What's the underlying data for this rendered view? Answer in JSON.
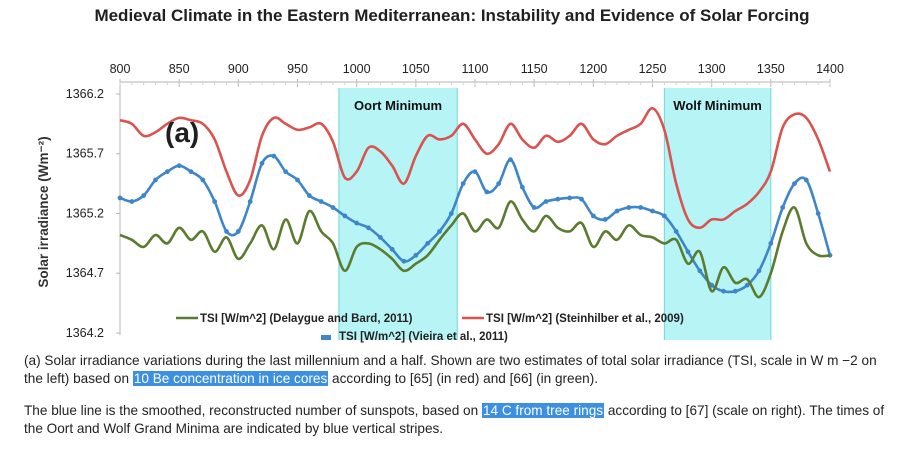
{
  "title": "Medieval Climate in the Eastern Mediterranean: Instability and Evidence of Solar Forcing",
  "panel_label": "(a)",
  "colors": {
    "red": "#d9534f",
    "green": "#5b7b2e",
    "blue": "#3e86c9",
    "stripe": "#9ff0f2"
  },
  "chart_data": {
    "type": "line",
    "xlabel": "",
    "ylabel": "Solar irradiance (Wm⁻²)",
    "xticks": [
      "800",
      "850",
      "900",
      "950",
      "1000",
      "1050",
      "1100",
      "1150",
      "1200",
      "1250",
      "1300",
      "1350",
      "1400"
    ],
    "yticks": [
      "1366.2",
      "1365.7",
      "1365.2",
      "1364.7",
      "1364.2"
    ],
    "xlim": [
      800,
      1400
    ],
    "ylim": [
      1364.2,
      1366.3
    ],
    "shaded_regions": [
      {
        "label": "Oort Minimum",
        "x0": 985,
        "x1": 1085
      },
      {
        "label": "Wolf Minimum",
        "x0": 1260,
        "x1": 1350
      }
    ],
    "legend": [
      {
        "label": "TSI [W/m^2] (Delaygue and Bard, 2011)",
        "color": "green"
      },
      {
        "label": "TSI [W/m^2] (Steinhilber et al., 2009)",
        "color": "red"
      },
      {
        "label": "TSI [W/m^2] (Vieira et al., 2011)",
        "color": "blue"
      }
    ],
    "series": [
      {
        "name": "TSI [W/m^2] (Steinhilber et al., 2009)",
        "color": "red",
        "x": [
          800,
          810,
          820,
          830,
          840,
          850,
          860,
          870,
          880,
          890,
          900,
          910,
          920,
          930,
          940,
          950,
          960,
          970,
          980,
          990,
          1000,
          1010,
          1020,
          1030,
          1040,
          1050,
          1060,
          1070,
          1080,
          1090,
          1100,
          1110,
          1120,
          1130,
          1140,
          1150,
          1160,
          1170,
          1180,
          1190,
          1200,
          1210,
          1220,
          1230,
          1240,
          1250,
          1260,
          1270,
          1280,
          1290,
          1300,
          1310,
          1320,
          1330,
          1340,
          1350,
          1360,
          1370,
          1380,
          1390,
          1400
        ],
        "y": [
          1365.98,
          1365.95,
          1365.85,
          1365.88,
          1365.95,
          1366.0,
          1365.98,
          1365.95,
          1365.82,
          1365.55,
          1365.35,
          1365.48,
          1365.85,
          1366.0,
          1365.95,
          1365.9,
          1365.92,
          1365.95,
          1365.8,
          1365.5,
          1365.55,
          1365.75,
          1365.72,
          1365.6,
          1365.45,
          1365.68,
          1365.85,
          1365.82,
          1365.85,
          1365.95,
          1365.82,
          1365.7,
          1365.78,
          1365.95,
          1365.82,
          1365.75,
          1365.85,
          1365.8,
          1365.85,
          1365.95,
          1365.82,
          1365.78,
          1365.85,
          1365.9,
          1365.95,
          1366.08,
          1365.9,
          1365.45,
          1365.15,
          1365.08,
          1365.15,
          1365.15,
          1365.22,
          1365.28,
          1365.38,
          1365.55,
          1365.92,
          1366.03,
          1366.0,
          1365.82,
          1365.55
        ]
      },
      {
        "name": "TSI [W/m^2] (Vieira et al., 2011)",
        "color": "blue",
        "x": [
          800,
          810,
          820,
          830,
          840,
          850,
          860,
          870,
          880,
          890,
          900,
          910,
          920,
          930,
          940,
          950,
          960,
          970,
          980,
          990,
          1000,
          1010,
          1020,
          1030,
          1040,
          1050,
          1060,
          1070,
          1080,
          1090,
          1100,
          1110,
          1120,
          1130,
          1140,
          1150,
          1160,
          1170,
          1180,
          1190,
          1200,
          1210,
          1220,
          1230,
          1240,
          1250,
          1260,
          1270,
          1280,
          1290,
          1300,
          1310,
          1320,
          1330,
          1340,
          1350,
          1360,
          1370,
          1380,
          1390,
          1400
        ],
        "y": [
          1365.33,
          1365.3,
          1365.35,
          1365.48,
          1365.55,
          1365.6,
          1365.55,
          1365.48,
          1365.3,
          1365.05,
          1365.05,
          1365.3,
          1365.62,
          1365.68,
          1365.55,
          1365.48,
          1365.35,
          1365.3,
          1365.25,
          1365.18,
          1365.12,
          1365.08,
          1365.0,
          1364.9,
          1364.8,
          1364.85,
          1364.95,
          1365.05,
          1365.2,
          1365.45,
          1365.55,
          1365.38,
          1365.45,
          1365.65,
          1365.42,
          1365.25,
          1365.3,
          1365.32,
          1365.33,
          1365.32,
          1365.18,
          1365.15,
          1365.22,
          1365.25,
          1365.25,
          1365.22,
          1365.18,
          1365.05,
          1364.88,
          1364.72,
          1364.6,
          1364.55,
          1364.55,
          1364.6,
          1364.72,
          1364.95,
          1365.25,
          1365.45,
          1365.48,
          1365.2,
          1364.85
        ]
      },
      {
        "name": "TSI [W/m^2] (Delaygue and Bard, 2011)",
        "color": "green",
        "x": [
          800,
          810,
          820,
          830,
          840,
          850,
          860,
          870,
          880,
          890,
          900,
          910,
          920,
          930,
          940,
          950,
          960,
          970,
          980,
          990,
          1000,
          1010,
          1020,
          1030,
          1040,
          1050,
          1060,
          1070,
          1080,
          1090,
          1100,
          1110,
          1120,
          1130,
          1140,
          1150,
          1160,
          1170,
          1180,
          1190,
          1200,
          1210,
          1220,
          1230,
          1240,
          1250,
          1260,
          1270,
          1280,
          1290,
          1300,
          1310,
          1320,
          1330,
          1340,
          1350,
          1360,
          1370,
          1380,
          1390,
          1400
        ],
        "y": [
          1365.02,
          1364.98,
          1364.92,
          1365.02,
          1364.95,
          1365.08,
          1364.98,
          1365.05,
          1364.88,
          1365.0,
          1364.82,
          1364.95,
          1365.1,
          1364.9,
          1365.15,
          1364.95,
          1365.22,
          1365.05,
          1364.95,
          1364.72,
          1364.92,
          1364.95,
          1364.9,
          1364.82,
          1364.72,
          1364.78,
          1364.85,
          1364.98,
          1365.1,
          1365.2,
          1365.05,
          1365.15,
          1365.08,
          1365.3,
          1365.15,
          1365.05,
          1365.18,
          1365.08,
          1365.05,
          1365.12,
          1364.92,
          1365.05,
          1364.98,
          1365.1,
          1365.02,
          1365.0,
          1364.95,
          1364.98,
          1364.78,
          1364.88,
          1364.55,
          1364.75,
          1364.62,
          1364.65,
          1364.5,
          1364.7,
          1365.05,
          1365.25,
          1364.95,
          1364.85,
          1364.85
        ]
      }
    ]
  },
  "caption": {
    "p1_a": "(a) Solar irradiance variations during the last millennium and a half. Shown are two estimates of total solar irradiance (TSI, scale in W m −2 on the left) based on ",
    "p1_hl": "10 Be concentration in ice cores",
    "p1_b": " according to [65] (in red) and [66] (in green).",
    "p2_a": "The blue line is the smoothed, reconstructed number of sunspots, based on ",
    "p2_hl": "14 C from tree rings",
    "p2_b": " according to [67] (scale on right). The times of the Oort and Wolf Grand Minima are indicated by blue vertical stripes."
  }
}
